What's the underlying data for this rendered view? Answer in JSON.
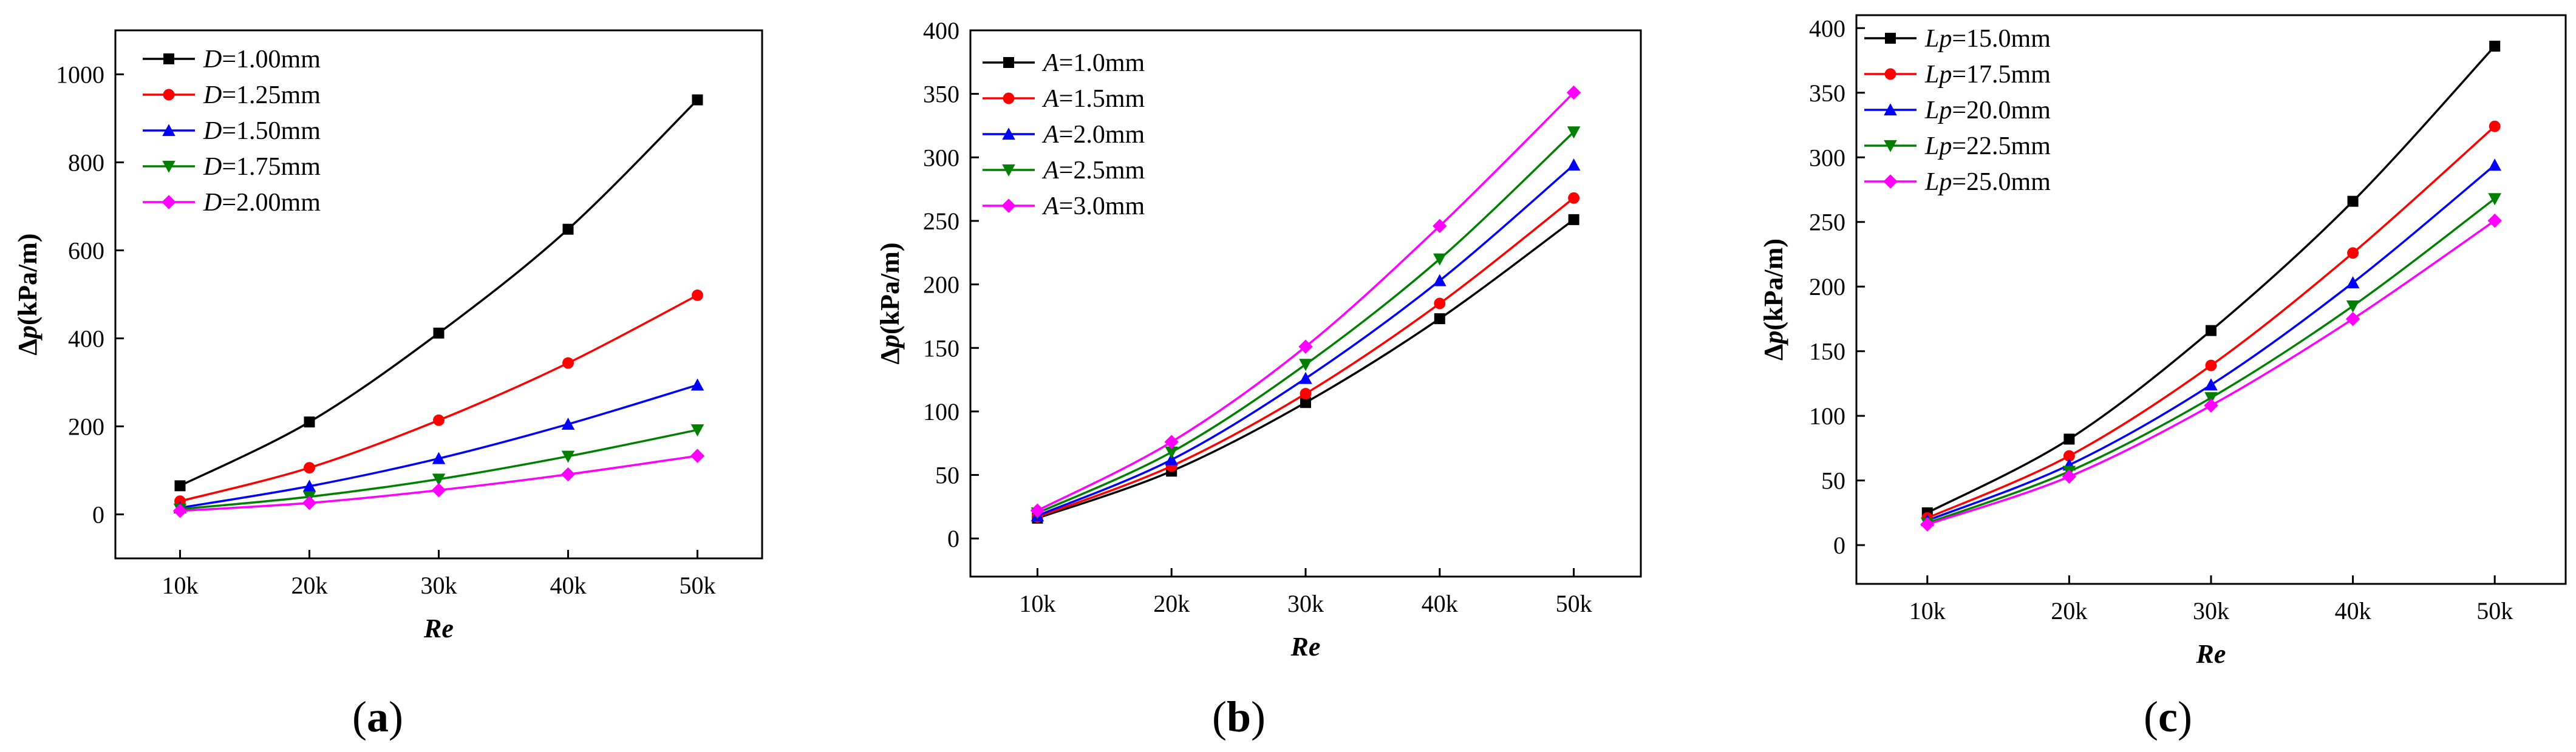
{
  "chart_data": [
    {
      "type": "line",
      "panel_label": "(a)",
      "ylabel": "Δp(kPa/m)",
      "xlabel": "Re",
      "x": [
        10000,
        20000,
        30000,
        40000,
        50000
      ],
      "x_tick_labels": [
        "10k",
        "20k",
        "30k",
        "40k",
        "50k"
      ],
      "xlim": [
        5000,
        55000
      ],
      "ylim": [
        -100,
        1100
      ],
      "yticks": [
        0,
        200,
        400,
        600,
        800,
        1000
      ],
      "legend_position": "top-left",
      "series": [
        {
          "name": "D=1.00mm",
          "legend_italic": "D",
          "legend_rest": "=1.00mm",
          "color": "#000000",
          "marker": "square",
          "values": [
            65,
            210,
            412,
            648,
            942
          ]
        },
        {
          "name": "D=1.25mm",
          "legend_italic": "D",
          "legend_rest": "=1.25mm",
          "color": "#ff0000",
          "marker": "circle",
          "values": [
            30,
            106,
            214,
            344,
            498
          ]
        },
        {
          "name": "D=1.50mm",
          "legend_italic": "D",
          "legend_rest": "=1.50mm",
          "color": "#0000ff",
          "marker": "triangle-up",
          "values": [
            15,
            64,
            127,
            205,
            294
          ]
        },
        {
          "name": "D=1.75mm",
          "legend_italic": "D",
          "legend_rest": "=1.75mm",
          "color": "#008000",
          "marker": "triangle-down",
          "values": [
            12,
            40,
            80,
            132,
            192
          ]
        },
        {
          "name": "D=2.00mm",
          "legend_italic": "D",
          "legend_rest": "=2.00mm",
          "color": "#ff00ff",
          "marker": "diamond",
          "values": [
            8,
            26,
            55,
            91,
            133
          ]
        }
      ]
    },
    {
      "type": "line",
      "panel_label": "(b)",
      "ylabel": "Δp(kPa/m)",
      "xlabel": "Re",
      "x": [
        10000,
        20000,
        30000,
        40000,
        50000
      ],
      "x_tick_labels": [
        "10k",
        "20k",
        "30k",
        "40k",
        "50k"
      ],
      "xlim": [
        5000,
        55000
      ],
      "ylim": [
        -30,
        400
      ],
      "yticks": [
        0,
        50,
        100,
        150,
        200,
        250,
        300,
        350,
        400
      ],
      "legend_position": "top-left",
      "series": [
        {
          "name": "A=1.0mm",
          "legend_italic": "A",
          "legend_rest": "=1.0mm",
          "color": "#000000",
          "marker": "square",
          "values": [
            16,
            53,
            107,
            173,
            251
          ]
        },
        {
          "name": "A=1.5mm",
          "legend_italic": "A",
          "legend_rest": "=1.5mm",
          "color": "#ff0000",
          "marker": "circle",
          "values": [
            17,
            57,
            114,
            185,
            268
          ]
        },
        {
          "name": "A=2.0mm",
          "legend_italic": "A",
          "legend_rest": "=2.0mm",
          "color": "#0000ff",
          "marker": "triangle-up",
          "values": [
            18,
            62,
            126,
            203,
            294
          ]
        },
        {
          "name": "A=2.5mm",
          "legend_italic": "A",
          "legend_rest": "=2.5mm",
          "color": "#008000",
          "marker": "triangle-down",
          "values": [
            20,
            68,
            137,
            220,
            320
          ]
        },
        {
          "name": "A=3.0mm",
          "legend_italic": "A",
          "legend_rest": "=3.0mm",
          "color": "#ff00ff",
          "marker": "diamond",
          "values": [
            22,
            76,
            151,
            246,
            351
          ]
        }
      ]
    },
    {
      "type": "line",
      "panel_label": "(c)",
      "ylabel": "Δp(kPa/m)",
      "xlabel": "Re",
      "x": [
        10000,
        20000,
        30000,
        40000,
        50000
      ],
      "x_tick_labels": [
        "10k",
        "20k",
        "30k",
        "40k",
        "50k"
      ],
      "xlim": [
        5000,
        55000
      ],
      "ylim": [
        -30,
        410
      ],
      "yticks": [
        0,
        50,
        100,
        150,
        200,
        250,
        300,
        350,
        400
      ],
      "legend_position": "top-left",
      "series": [
        {
          "name": "Lp=15.0mm",
          "legend_italic": "Lp",
          "legend_rest": "=15.0mm",
          "color": "#000000",
          "marker": "square",
          "values": [
            25,
            82,
            166,
            266,
            386
          ]
        },
        {
          "name": "Lp=17.5mm",
          "legend_italic": "Lp",
          "legend_rest": "=17.5mm",
          "color": "#ff0000",
          "marker": "circle",
          "values": [
            21,
            69,
            139,
            226,
            324
          ]
        },
        {
          "name": "Lp=20.0mm",
          "legend_italic": "Lp",
          "legend_rest": "=20.0mm",
          "color": "#0000ff",
          "marker": "triangle-up",
          "values": [
            19,
            62,
            124,
            203,
            294
          ]
        },
        {
          "name": "Lp=22.5mm",
          "legend_italic": "Lp",
          "legend_rest": "=22.5mm",
          "color": "#008000",
          "marker": "triangle-down",
          "values": [
            17,
            57,
            114,
            185,
            268
          ]
        },
        {
          "name": "Lp=25.0mm",
          "legend_italic": "Lp",
          "legend_rest": "=25.0mm",
          "color": "#ff00ff",
          "marker": "diamond",
          "values": [
            16,
            53,
            108,
            175,
            251
          ]
        }
      ]
    }
  ]
}
